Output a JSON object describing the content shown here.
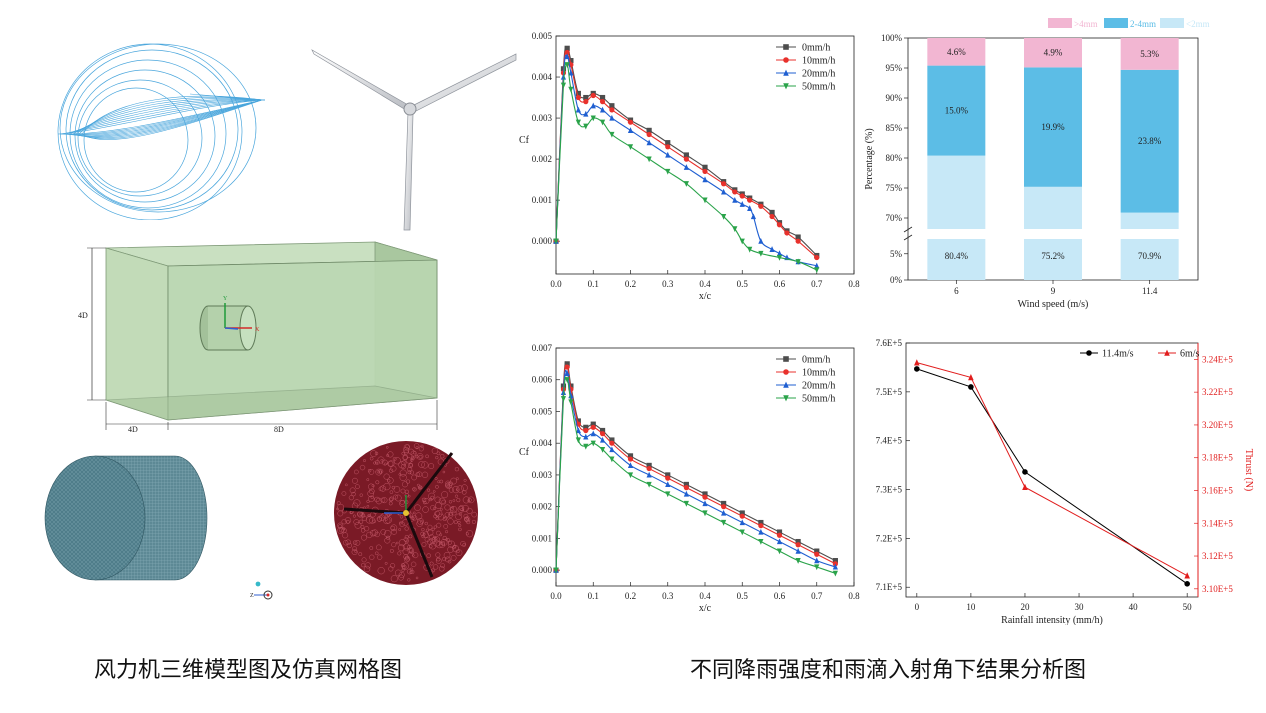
{
  "captions": {
    "left": "风力机三维模型图及仿真网格图",
    "right": "不同降雨强度和雨滴入射角下结果分析图"
  },
  "figure_labels": {
    "domain_height": "4D",
    "domain_upstream": "4D",
    "domain_downstream": "8D",
    "axis_y": "Y",
    "axis_z": "Z",
    "axis_x": "X"
  },
  "colors": {
    "s0": "#4d4d4d",
    "s10": "#e8312c",
    "s20": "#1f5fd1",
    "s50": "#2aa34a",
    "pink": "#f2b6d2",
    "blue_mid": "#5cbde6",
    "blue_light": "#c7e8f7",
    "thrust_black": "#000000",
    "thrust_red": "#e11d1d",
    "mesh_teal": "#4f7d8a",
    "mesh_red": "#7a1a26",
    "domain_green": "#b9d6b0"
  },
  "chart_data": [
    {
      "id": "cf-top",
      "type": "line",
      "ylabel": "Cf",
      "xlabel": "x/c",
      "xlim": [
        0,
        0.8
      ],
      "ylim": [
        -0.0008,
        0.005
      ],
      "xticks": [
        "0.0",
        "0.1",
        "0.2",
        "0.3",
        "0.4",
        "0.5",
        "0.6",
        "0.7",
        "0.8"
      ],
      "yticks": [
        "0.000",
        "0.001",
        "0.002",
        "0.003",
        "0.004",
        "0.005"
      ],
      "legend_position": "top-right",
      "series": [
        {
          "name": "0mm/h",
          "marker": "square",
          "x": [
            0,
            0.02,
            0.03,
            0.04,
            0.06,
            0.08,
            0.1,
            0.125,
            0.15,
            0.2,
            0.25,
            0.3,
            0.35,
            0.4,
            0.45,
            0.48,
            0.5,
            0.52,
            0.55,
            0.58,
            0.6,
            0.62,
            0.65,
            0.7
          ],
          "y": [
            0.0,
            0.0042,
            0.0047,
            0.0044,
            0.0036,
            0.0035,
            0.0036,
            0.0035,
            0.0033,
            0.00295,
            0.0027,
            0.0024,
            0.0021,
            0.0018,
            0.00145,
            0.00125,
            0.00115,
            0.00105,
            0.0009,
            0.0007,
            0.00045,
            0.00025,
            0.0001,
            -0.00035
          ]
        },
        {
          "name": "10mm/h",
          "marker": "circle",
          "x": [
            0,
            0.02,
            0.03,
            0.04,
            0.06,
            0.08,
            0.1,
            0.125,
            0.15,
            0.2,
            0.25,
            0.3,
            0.35,
            0.4,
            0.45,
            0.48,
            0.5,
            0.52,
            0.55,
            0.58,
            0.6,
            0.62,
            0.65,
            0.7
          ],
          "y": [
            0.0,
            0.0041,
            0.0046,
            0.0043,
            0.0035,
            0.0034,
            0.00355,
            0.0034,
            0.0032,
            0.0029,
            0.0026,
            0.0023,
            0.002,
            0.0017,
            0.0014,
            0.0012,
            0.0011,
            0.001,
            0.00085,
            0.0006,
            0.0004,
            0.0002,
            0.0,
            -0.0004
          ]
        },
        {
          "name": "20mm/h",
          "marker": "triangle-up",
          "x": [
            0,
            0.02,
            0.03,
            0.04,
            0.06,
            0.08,
            0.1,
            0.125,
            0.15,
            0.2,
            0.25,
            0.3,
            0.35,
            0.4,
            0.45,
            0.48,
            0.5,
            0.52,
            0.53,
            0.55,
            0.58,
            0.6,
            0.62,
            0.65,
            0.7
          ],
          "y": [
            0.0,
            0.004,
            0.0045,
            0.0041,
            0.0032,
            0.0031,
            0.0033,
            0.0032,
            0.003,
            0.0027,
            0.0024,
            0.0021,
            0.0018,
            0.0015,
            0.0012,
            0.001,
            0.0009,
            0.0008,
            0.0006,
            0.0,
            -0.0002,
            -0.0003,
            -0.0004,
            -0.0005,
            -0.0006
          ]
        },
        {
          "name": "50mm/h",
          "marker": "triangle-down",
          "x": [
            0,
            0.02,
            0.03,
            0.04,
            0.06,
            0.08,
            0.1,
            0.125,
            0.15,
            0.2,
            0.25,
            0.3,
            0.35,
            0.4,
            0.45,
            0.48,
            0.5,
            0.52,
            0.55,
            0.6,
            0.65,
            0.7
          ],
          "y": [
            0.0,
            0.0038,
            0.0043,
            0.0037,
            0.0029,
            0.0028,
            0.003,
            0.0029,
            0.0026,
            0.0023,
            0.002,
            0.0017,
            0.0014,
            0.001,
            0.0006,
            0.0003,
            0.0,
            -0.0002,
            -0.0003,
            -0.0004,
            -0.0005,
            -0.0007
          ]
        }
      ]
    },
    {
      "id": "cf-bottom",
      "type": "line",
      "ylabel": "Cf",
      "xlabel": "x/c",
      "xlim": [
        0,
        0.8
      ],
      "ylim": [
        -0.0005,
        0.007
      ],
      "xticks": [
        "0.0",
        "0.1",
        "0.2",
        "0.3",
        "0.4",
        "0.5",
        "0.6",
        "0.7",
        "0.8"
      ],
      "yticks": [
        "0.000",
        "0.001",
        "0.002",
        "0.003",
        "0.004",
        "0.005",
        "0.006",
        "0.007"
      ],
      "legend_position": "top-right",
      "series": [
        {
          "name": "0mm/h",
          "marker": "square",
          "x": [
            0,
            0.02,
            0.03,
            0.04,
            0.06,
            0.08,
            0.1,
            0.125,
            0.15,
            0.2,
            0.25,
            0.3,
            0.35,
            0.4,
            0.45,
            0.5,
            0.55,
            0.6,
            0.65,
            0.7,
            0.75
          ],
          "y": [
            0.0,
            0.0058,
            0.0065,
            0.0058,
            0.0047,
            0.0045,
            0.0046,
            0.0044,
            0.0041,
            0.0036,
            0.0033,
            0.003,
            0.0027,
            0.0024,
            0.0021,
            0.0018,
            0.0015,
            0.0012,
            0.0009,
            0.0006,
            0.0003
          ]
        },
        {
          "name": "10mm/h",
          "marker": "circle",
          "x": [
            0,
            0.02,
            0.03,
            0.04,
            0.06,
            0.08,
            0.1,
            0.125,
            0.15,
            0.2,
            0.25,
            0.3,
            0.35,
            0.4,
            0.45,
            0.5,
            0.55,
            0.6,
            0.65,
            0.7,
            0.75
          ],
          "y": [
            0.0,
            0.0057,
            0.0064,
            0.0057,
            0.0046,
            0.0044,
            0.0045,
            0.0043,
            0.004,
            0.0035,
            0.0032,
            0.0029,
            0.0026,
            0.0023,
            0.002,
            0.0017,
            0.0014,
            0.0011,
            0.0008,
            0.0005,
            0.0002
          ]
        },
        {
          "name": "20mm/h",
          "marker": "triangle-up",
          "x": [
            0,
            0.02,
            0.03,
            0.04,
            0.06,
            0.08,
            0.1,
            0.125,
            0.15,
            0.2,
            0.25,
            0.3,
            0.35,
            0.4,
            0.45,
            0.5,
            0.55,
            0.6,
            0.65,
            0.7,
            0.75
          ],
          "y": [
            0.0,
            0.0056,
            0.0062,
            0.0055,
            0.0044,
            0.0042,
            0.0043,
            0.0041,
            0.0038,
            0.0033,
            0.003,
            0.0027,
            0.0024,
            0.0021,
            0.0018,
            0.0015,
            0.0012,
            0.0009,
            0.0006,
            0.0003,
            0.0001
          ]
        },
        {
          "name": "50mm/h",
          "marker": "triangle-down",
          "x": [
            0,
            0.02,
            0.03,
            0.04,
            0.06,
            0.08,
            0.1,
            0.125,
            0.15,
            0.2,
            0.25,
            0.3,
            0.35,
            0.4,
            0.45,
            0.5,
            0.55,
            0.6,
            0.65,
            0.7,
            0.75
          ],
          "y": [
            0.0,
            0.0054,
            0.006,
            0.0053,
            0.0041,
            0.0039,
            0.004,
            0.0038,
            0.0035,
            0.003,
            0.0027,
            0.0024,
            0.0021,
            0.0018,
            0.0015,
            0.0012,
            0.0009,
            0.0006,
            0.0003,
            0.0001,
            -0.0001
          ]
        }
      ]
    },
    {
      "id": "percentage",
      "type": "bar",
      "stacked": true,
      "broken_axis": true,
      "xlabel": "Wind speed (m/s)",
      "ylabel": "Percentage (%)",
      "categories": [
        "6",
        "9",
        "11.4"
      ],
      "legend_position": "top-right",
      "legend": [
        ">4mm",
        "2-4mm",
        "<2mm"
      ],
      "yticks_upper": [
        "70%",
        "75%",
        "80%",
        "85%",
        "90%",
        "95%",
        "100%"
      ],
      "yticks_lower": [
        "0%",
        "5%"
      ],
      "series": [
        {
          "name": "<2mm",
          "values": [
            80.4,
            75.2,
            70.9
          ],
          "labels": [
            "80.4%",
            "75.2%",
            "70.9%"
          ]
        },
        {
          "name": "2-4mm",
          "values": [
            15.0,
            19.9,
            23.8
          ],
          "labels": [
            "15.0%",
            "19.9%",
            "23.8%"
          ]
        },
        {
          "name": ">4mm",
          "values": [
            4.6,
            4.9,
            5.3
          ],
          "labels": [
            "4.6%",
            "4.9%",
            "5.3%"
          ]
        }
      ]
    },
    {
      "id": "thrust",
      "type": "line",
      "dual_axis": true,
      "xlabel": "Rainfall intensity (mm/h)",
      "ylabel_right": "Thrust (N)",
      "xlim": [
        -2,
        52
      ],
      "ylim_left": [
        708000.0,
        760000.0
      ],
      "ylim_right": [
        309500.0,
        325000.0
      ],
      "xticks": [
        "0",
        "10",
        "20",
        "30",
        "40",
        "50"
      ],
      "yticks_left": [
        "7.1E+5",
        "7.2E+5",
        "7.3E+5",
        "7.4E+5",
        "7.5E+5",
        "7.6E+5"
      ],
      "yticks_right": [
        "3.10E+5",
        "3.12E+5",
        "3.14E+5",
        "3.16E+5",
        "3.18E+5",
        "3.20E+5",
        "3.22E+5",
        "3.24E+5"
      ],
      "legend_position": "top-right",
      "series": [
        {
          "name": "11.4m/s",
          "axis": "left",
          "marker": "circle",
          "x": [
            0,
            10,
            20,
            50
          ],
          "y": [
            754700,
            751000,
            733600,
            710700
          ]
        },
        {
          "name": "6m/s",
          "axis": "right",
          "marker": "triangle-up",
          "x": [
            0,
            10,
            20,
            50
          ],
          "y": [
            323800,
            322900,
            316200,
            310800
          ]
        }
      ]
    }
  ]
}
